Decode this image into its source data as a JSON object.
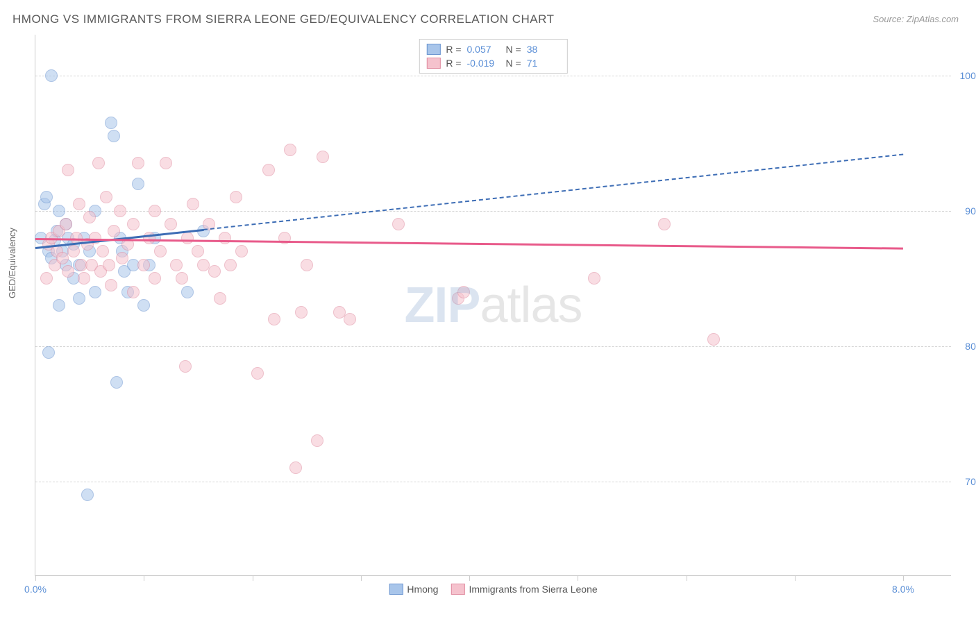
{
  "title": "HMONG VS IMMIGRANTS FROM SIERRA LEONE GED/EQUIVALENCY CORRELATION CHART",
  "source": "Source: ZipAtlas.com",
  "ylabel": "GED/Equivalency",
  "watermark_zip": "ZIP",
  "watermark_atlas": "atlas",
  "chart": {
    "type": "scatter",
    "xlim": [
      0,
      8
    ],
    "ylim": [
      63,
      103
    ],
    "xtick_positions": [
      0,
      1,
      2,
      3,
      4,
      5,
      6,
      7,
      8
    ],
    "xtick_labels": {
      "0": "0.0%",
      "8": "8.0%"
    },
    "ytick_positions": [
      70,
      80,
      90,
      100
    ],
    "ytick_labels": [
      "70.0%",
      "80.0%",
      "90.0%",
      "100.0%"
    ],
    "background_color": "#ffffff",
    "grid_color": "#d5d5d5",
    "axis_color": "#cccccc",
    "tick_label_color": "#5b8fd6",
    "marker_radius": 9,
    "marker_opacity": 0.55,
    "series": [
      {
        "name": "Hmong",
        "fill_color": "#a8c5ea",
        "stroke_color": "#6b95d0",
        "R": "0.057",
        "N": "38",
        "trend": {
          "x1": 0.0,
          "y1": 87.3,
          "x2": 8.0,
          "y2": 94.2,
          "solid_until_x": 1.55,
          "line_color": "#3d6db5",
          "line_width": 3
        },
        "points": [
          [
            0.05,
            88.0
          ],
          [
            0.08,
            90.5
          ],
          [
            0.1,
            91.0
          ],
          [
            0.12,
            79.5
          ],
          [
            0.12,
            87.0
          ],
          [
            0.15,
            86.5
          ],
          [
            0.15,
            100.0
          ],
          [
            0.18,
            87.8
          ],
          [
            0.2,
            88.5
          ],
          [
            0.22,
            90.0
          ],
          [
            0.22,
            83.0
          ],
          [
            0.25,
            87.0
          ],
          [
            0.28,
            86.0
          ],
          [
            0.28,
            89.0
          ],
          [
            0.3,
            88.0
          ],
          [
            0.35,
            87.5
          ],
          [
            0.35,
            85.0
          ],
          [
            0.4,
            86.0
          ],
          [
            0.4,
            83.5
          ],
          [
            0.45,
            88.0
          ],
          [
            0.48,
            69.0
          ],
          [
            0.5,
            87.0
          ],
          [
            0.55,
            84.0
          ],
          [
            0.55,
            90.0
          ],
          [
            0.7,
            96.5
          ],
          [
            0.72,
            95.5
          ],
          [
            0.75,
            77.3
          ],
          [
            0.78,
            88.0
          ],
          [
            0.8,
            87.0
          ],
          [
            0.82,
            85.5
          ],
          [
            0.85,
            84.0
          ],
          [
            0.9,
            86.0
          ],
          [
            0.95,
            92.0
          ],
          [
            1.0,
            83.0
          ],
          [
            1.05,
            86.0
          ],
          [
            1.1,
            88.0
          ],
          [
            1.4,
            84.0
          ],
          [
            1.55,
            88.5
          ]
        ]
      },
      {
        "name": "Immigrants from Sierra Leone",
        "fill_color": "#f5c2cd",
        "stroke_color": "#e08ca0",
        "R": "-0.019",
        "N": "71",
        "trend": {
          "x1": 0.0,
          "y1": 88.0,
          "x2": 8.0,
          "y2": 87.3,
          "solid_until_x": 8.0,
          "line_color": "#e85a8a",
          "line_width": 3
        },
        "points": [
          [
            0.1,
            85.0
          ],
          [
            0.12,
            87.5
          ],
          [
            0.15,
            88.0
          ],
          [
            0.18,
            86.0
          ],
          [
            0.2,
            87.0
          ],
          [
            0.22,
            88.5
          ],
          [
            0.25,
            86.5
          ],
          [
            0.28,
            89.0
          ],
          [
            0.3,
            85.5
          ],
          [
            0.3,
            93.0
          ],
          [
            0.35,
            87.0
          ],
          [
            0.38,
            88.0
          ],
          [
            0.4,
            90.5
          ],
          [
            0.42,
            86.0
          ],
          [
            0.45,
            85.0
          ],
          [
            0.48,
            87.5
          ],
          [
            0.5,
            89.5
          ],
          [
            0.52,
            86.0
          ],
          [
            0.55,
            88.0
          ],
          [
            0.58,
            93.5
          ],
          [
            0.6,
            85.5
          ],
          [
            0.62,
            87.0
          ],
          [
            0.65,
            91.0
          ],
          [
            0.68,
            86.0
          ],
          [
            0.7,
            84.5
          ],
          [
            0.72,
            88.5
          ],
          [
            0.78,
            90.0
          ],
          [
            0.8,
            86.5
          ],
          [
            0.85,
            87.5
          ],
          [
            0.9,
            89.0
          ],
          [
            0.9,
            84.0
          ],
          [
            0.95,
            93.5
          ],
          [
            1.0,
            86.0
          ],
          [
            1.05,
            88.0
          ],
          [
            1.1,
            90.0
          ],
          [
            1.1,
            85.0
          ],
          [
            1.15,
            87.0
          ],
          [
            1.2,
            93.5
          ],
          [
            1.25,
            89.0
          ],
          [
            1.3,
            86.0
          ],
          [
            1.35,
            85.0
          ],
          [
            1.38,
            78.5
          ],
          [
            1.4,
            88.0
          ],
          [
            1.45,
            90.5
          ],
          [
            1.5,
            87.0
          ],
          [
            1.55,
            86.0
          ],
          [
            1.6,
            89.0
          ],
          [
            1.65,
            85.5
          ],
          [
            1.7,
            83.5
          ],
          [
            1.75,
            88.0
          ],
          [
            1.8,
            86.0
          ],
          [
            1.85,
            91.0
          ],
          [
            1.9,
            87.0
          ],
          [
            2.05,
            78.0
          ],
          [
            2.15,
            93.0
          ],
          [
            2.2,
            82.0
          ],
          [
            2.3,
            88.0
          ],
          [
            2.35,
            94.5
          ],
          [
            2.4,
            71.0
          ],
          [
            2.45,
            82.5
          ],
          [
            2.5,
            86.0
          ],
          [
            2.6,
            73.0
          ],
          [
            2.65,
            94.0
          ],
          [
            2.8,
            82.5
          ],
          [
            2.9,
            82.0
          ],
          [
            3.35,
            89.0
          ],
          [
            3.9,
            83.5
          ],
          [
            3.95,
            84.0
          ],
          [
            5.15,
            85.0
          ],
          [
            5.8,
            89.0
          ],
          [
            6.25,
            80.5
          ]
        ]
      }
    ]
  },
  "legend_top": {
    "r_label": "R =",
    "n_label": "N ="
  },
  "legend_bottom": [
    {
      "label": "Hmong",
      "fill": "#a8c5ea",
      "stroke": "#6b95d0"
    },
    {
      "label": "Immigrants from Sierra Leone",
      "fill": "#f5c2cd",
      "stroke": "#e08ca0"
    }
  ]
}
